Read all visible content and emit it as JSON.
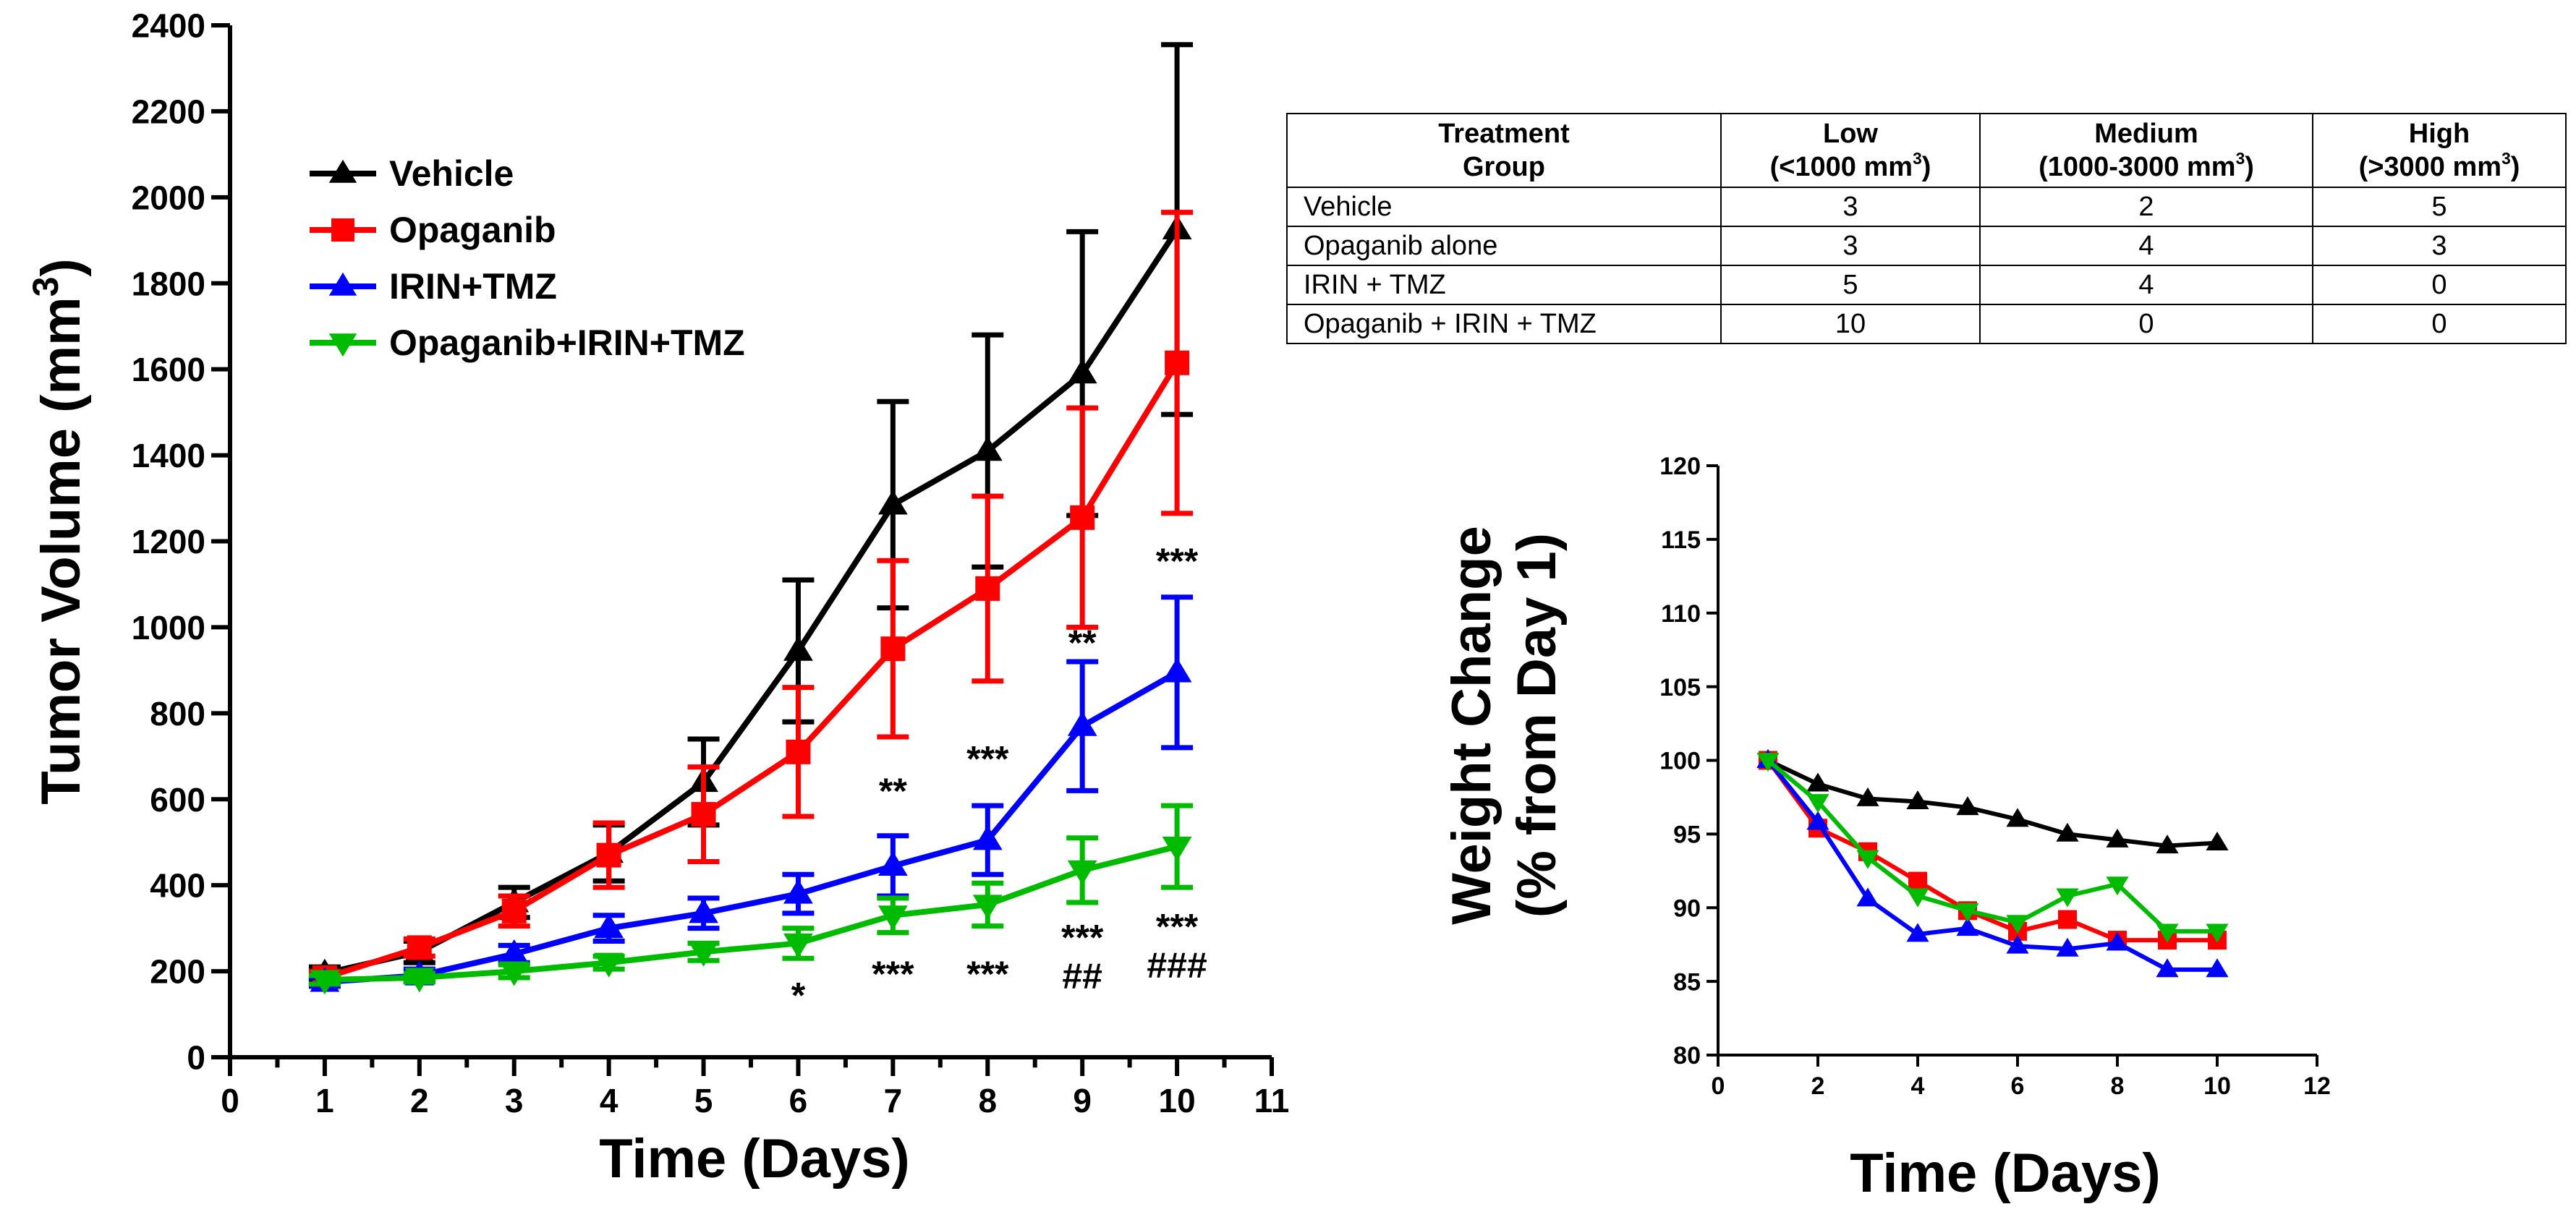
{
  "chart_data": [
    {
      "type": "line",
      "xlabel": "Time (Days)",
      "ylabel": "Tumor Volume (mm",
      "ylabel_sup": "3",
      "ylabel_close": ")",
      "xlim": [
        0,
        11
      ],
      "ylim": [
        0,
        2400
      ],
      "xticks": [
        0,
        1,
        2,
        3,
        4,
        5,
        6,
        7,
        8,
        9,
        10,
        11
      ],
      "yticks": [
        0,
        200,
        400,
        600,
        800,
        1000,
        1200,
        1400,
        1600,
        1800,
        2000,
        2200,
        2400
      ],
      "x": [
        1,
        2,
        3,
        4,
        5,
        6,
        7,
        8,
        9,
        10
      ],
      "series": [
        {
          "name": "Vehicle",
          "color": "#000000",
          "marker": "triangle-up",
          "values": [
            195,
            245,
            360,
            475,
            640,
            945,
            1285,
            1410,
            1590,
            1925
          ],
          "errors": [
            15,
            25,
            35,
            65,
            100,
            165,
            240,
            270,
            330,
            430
          ]
        },
        {
          "name": "Opaganib",
          "color": "#ff0000",
          "marker": "square",
          "values": [
            185,
            255,
            340,
            470,
            565,
            710,
            950,
            1090,
            1255,
            1615
          ],
          "errors": [
            15,
            20,
            35,
            75,
            110,
            150,
            205,
            215,
            255,
            350
          ]
        },
        {
          "name": "IRIN+TMZ",
          "color": "#0000ff",
          "marker": "triangle-up",
          "values": [
            175,
            190,
            240,
            300,
            335,
            380,
            445,
            505,
            770,
            895
          ],
          "errors": [
            10,
            15,
            20,
            30,
            35,
            45,
            70,
            80,
            150,
            175
          ]
        },
        {
          "name": "Opaganib+IRIN+TMZ",
          "color": "#00bb00",
          "marker": "triangle-down",
          "values": [
            180,
            185,
            200,
            220,
            245,
            265,
            330,
            355,
            435,
            490
          ],
          "errors": [
            10,
            10,
            15,
            15,
            20,
            35,
            40,
            50,
            75,
            95
          ]
        }
      ],
      "annotations": [
        {
          "text": "**",
          "x": 7,
          "y": 590,
          "color": "#000000"
        },
        {
          "text": "***",
          "x": 8,
          "y": 665,
          "color": "#000000"
        },
        {
          "text": "**",
          "x": 9,
          "y": 935,
          "color": "#000000"
        },
        {
          "text": "***",
          "x": 10,
          "y": 1125,
          "color": "#000000"
        },
        {
          "text": "*",
          "x": 6,
          "y": 115,
          "color": "#000000"
        },
        {
          "text": "***",
          "x": 7,
          "y": 165,
          "color": "#000000"
        },
        {
          "text": "***",
          "x": 8,
          "y": 165,
          "color": "#000000"
        },
        {
          "text": "***",
          "x": 9,
          "y": 250,
          "color": "#000000"
        },
        {
          "text": "##",
          "x": 9,
          "y": 160,
          "color": "#000000"
        },
        {
          "text": "***",
          "x": 10,
          "y": 275,
          "color": "#000000"
        },
        {
          "text": "###",
          "x": 10,
          "y": 185,
          "color": "#000000"
        }
      ]
    },
    {
      "type": "line",
      "xlabel": "Time (Days)",
      "ylabel": [
        "Weight Change",
        "(% from Day 1)"
      ],
      "xlim": [
        0,
        12
      ],
      "ylim": [
        80,
        120
      ],
      "xticks": [
        0,
        2,
        4,
        6,
        8,
        10,
        12
      ],
      "yticks": [
        80,
        85,
        90,
        95,
        100,
        105,
        110,
        115,
        120
      ],
      "x": [
        1,
        2,
        3,
        4,
        5,
        6,
        7,
        8,
        9,
        10
      ],
      "series": [
        {
          "name": "Vehicle",
          "color": "#000000",
          "marker": "triangle-up",
          "values": [
            100,
            98.4,
            97.4,
            97.2,
            96.8,
            96.0,
            95.0,
            94.6,
            94.2,
            94.4
          ]
        },
        {
          "name": "Opaganib",
          "color": "#ff0000",
          "marker": "square",
          "values": [
            100,
            95.4,
            93.8,
            91.8,
            89.8,
            88.4,
            89.2,
            87.8,
            87.8,
            87.8
          ]
        },
        {
          "name": "IRIN+TMZ",
          "color": "#0000ff",
          "marker": "triangle-up",
          "values": [
            100,
            95.8,
            90.6,
            88.2,
            88.6,
            87.4,
            87.2,
            87.6,
            85.8,
            85.8
          ]
        },
        {
          "name": "Opaganib+IRIN+TMZ",
          "color": "#00bb00",
          "marker": "triangle-down",
          "values": [
            100,
            97.2,
            93.4,
            90.8,
            89.8,
            89.0,
            90.8,
            91.6,
            88.4,
            88.4
          ]
        }
      ]
    },
    {
      "type": "table",
      "header": [
        {
          "line1": "Treatment",
          "line2": "Group",
          "sup": "",
          "close": ""
        },
        {
          "line1": "Low",
          "line2": "(<1000 mm",
          "sup": "3",
          "close": ")"
        },
        {
          "line1": "Medium",
          "line2": "(1000-3000 mm",
          "sup": "3",
          "close": ")"
        },
        {
          "line1": "High",
          "line2": "(>3000 mm",
          "sup": "3",
          "close": ")"
        }
      ],
      "rows": [
        {
          "group": "Vehicle",
          "low": "3",
          "medium": "2",
          "high": "5"
        },
        {
          "group": "Opaganib alone",
          "low": "3",
          "medium": "4",
          "high": "3"
        },
        {
          "group": "IRIN + TMZ",
          "low": "5",
          "medium": "4",
          "high": "0"
        },
        {
          "group": "Opaganib + IRIN + TMZ",
          "low": "10",
          "medium": "0",
          "high": "0"
        }
      ]
    }
  ]
}
